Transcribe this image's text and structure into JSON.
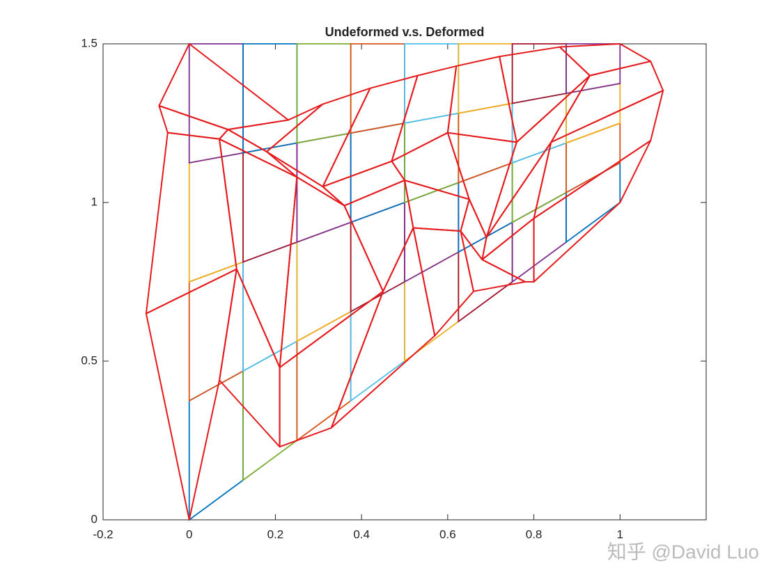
{
  "chart_data": {
    "type": "mesh",
    "title": "Undeformed v.s. Deformed",
    "xlim": [
      -0.2,
      1.2
    ],
    "ylim": [
      0,
      1.5
    ],
    "xticks": [
      -0.2,
      0,
      0.2,
      0.4,
      0.6,
      0.8,
      1
    ],
    "yticks": [
      0,
      0.5,
      1,
      1.5
    ],
    "element_colors": [
      "#0072BD",
      "#D95319",
      "#EDB120",
      "#7E2F8E",
      "#77AC30",
      "#4DBEEE",
      "#A2142F"
    ],
    "undeformed": {
      "x": [
        [
          0,
          0,
          0,
          0,
          0
        ],
        [
          0.125,
          0.125,
          0.125,
          0.125,
          0.125
        ],
        [
          0.25,
          0.25,
          0.25,
          0.25,
          0.25
        ],
        [
          0.375,
          0.375,
          0.375,
          0.375,
          0.375
        ],
        [
          0.5,
          0.5,
          0.5,
          0.5,
          0.5
        ],
        [
          0.625,
          0.625,
          0.625,
          0.625,
          0.625
        ],
        [
          0.75,
          0.75,
          0.75,
          0.75,
          0.75
        ],
        [
          0.875,
          0.875,
          0.875,
          0.875,
          0.875
        ],
        [
          1,
          1,
          1,
          1,
          1
        ]
      ],
      "y": [
        [
          0,
          0.375,
          0.75,
          1.125,
          1.5
        ],
        [
          0.125,
          0.46875,
          0.8125,
          1.15625,
          1.5
        ],
        [
          0.25,
          0.5625,
          0.875,
          1.1875,
          1.5
        ],
        [
          0.375,
          0.65625,
          0.9375,
          1.21875,
          1.5
        ],
        [
          0.5,
          0.75,
          1.0,
          1.25,
          1.5
        ],
        [
          0.625,
          0.84375,
          1.0625,
          1.28125,
          1.5
        ],
        [
          0.75,
          0.9375,
          1.125,
          1.3125,
          1.5
        ],
        [
          0.875,
          1.03125,
          1.1875,
          1.34375,
          1.5
        ],
        [
          1,
          1.125,
          1.25,
          1.375,
          1.5
        ]
      ]
    },
    "deformed": {
      "color": "#E41A1C",
      "x": [
        [
          0,
          -0.1,
          -0.05,
          -0.07,
          0
        ],
        [
          0.07,
          0.11,
          0.07,
          0.09,
          0.23
        ],
        [
          0.21,
          0.21,
          0.25,
          0.18,
          0.31
        ],
        [
          0.33,
          0.45,
          0.36,
          0.31,
          0.42
        ],
        [
          0.57,
          0.52,
          0.5,
          0.47,
          0.53
        ],
        [
          0.66,
          0.63,
          0.65,
          0.6,
          0.62
        ],
        [
          0.78,
          0.68,
          0.69,
          0.76,
          0.72
        ],
        [
          0.8,
          0.8,
          0.84,
          0.93,
          0.86
        ],
        [
          1,
          1.071,
          1.1,
          1.071,
          1
        ]
      ],
      "y": [
        [
          0,
          0.65,
          1.22,
          1.305,
          1.5
        ],
        [
          0.44,
          0.79,
          1.2,
          1.23,
          1.26
        ],
        [
          0.23,
          0.48,
          1.08,
          1.16,
          1.31
        ],
        [
          0.29,
          0.72,
          0.99,
          1.05,
          1.36
        ],
        [
          0.58,
          0.92,
          1.07,
          1.13,
          1.4
        ],
        [
          0.72,
          0.91,
          1.01,
          1.22,
          1.43
        ],
        [
          0.75,
          0.82,
          0.89,
          1.19,
          1.46
        ],
        [
          0.75,
          0.95,
          1.19,
          1.4,
          1.49
        ],
        [
          1,
          1.195,
          1.353,
          1.445,
          1.5
        ]
      ]
    },
    "watermark": "知乎 @David Luo"
  }
}
